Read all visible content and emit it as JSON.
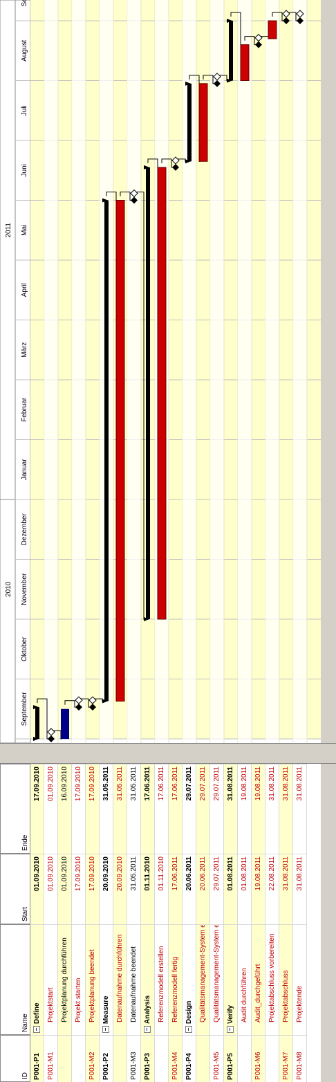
{
  "columns": {
    "id": "ID",
    "name": "Name",
    "start": "Start",
    "end": "Ende"
  },
  "timeline": {
    "years": [
      {
        "label": "2010",
        "month_index": 2.5
      },
      {
        "label": "2011",
        "month_index": 8.5
      }
    ],
    "months": [
      "September",
      "Oktober",
      "November",
      "Dezember",
      "Januar",
      "Februar",
      "März",
      "April",
      "Mai",
      "Juni",
      "Juli",
      "August",
      "Septembe"
    ]
  },
  "colors": {
    "row_yellow": "#ffffcc",
    "row_white": "#ffffff",
    "summary_bar": "#000000",
    "task_bar": "#cc0000",
    "planning_bar": "#00008b",
    "grid": "#c0c0c0"
  },
  "rows": [
    {
      "id": "P001-P1",
      "name": "Define",
      "start": "01.09.2010",
      "end": "17.09.2010",
      "kind": "summary",
      "bar_start": 0,
      "bar_end": 0.53
    },
    {
      "id": "P001-M1",
      "name": "Projektstart",
      "start": "01.09.2010",
      "end": "01.09.2010",
      "kind": "milestone",
      "bar_start": 0,
      "bar_end": 0
    },
    {
      "id": "",
      "name": "Projektplanung durchführen",
      "start": "01.09.2010",
      "end": "16.09.2010",
      "kind": "plan",
      "bar_start": 0,
      "bar_end": 0.5
    },
    {
      "id": "",
      "name": "Projekt starten",
      "start": "17.09.2010",
      "end": "17.09.2010",
      "kind": "milestone",
      "bar_start": 0.53,
      "bar_end": 0.53
    },
    {
      "id": "P001-M2",
      "name": "Projektplanung beendet",
      "start": "17.09.2010",
      "end": "17.09.2010",
      "kind": "milestone",
      "bar_start": 0.53,
      "bar_end": 0.53
    },
    {
      "id": "P001-P2",
      "name": "Measure",
      "start": "20.09.2010",
      "end": "31.05.2011",
      "kind": "summary",
      "bar_start": 0.63,
      "bar_end": 9.0
    },
    {
      "id": "",
      "name": "Datenaufnahme durchführen",
      "start": "20.09.2010",
      "end": "31.05.2011",
      "kind": "task",
      "bar_start": 0.63,
      "bar_end": 9.0
    },
    {
      "id": "P001-M3",
      "name": "Datenaufnahme beendet",
      "start": "31.05.2011",
      "end": "31.05.2011",
      "kind": "milestone",
      "bar_start": 9.0,
      "bar_end": 9.0
    },
    {
      "id": "P001-P3",
      "name": "Analysis",
      "start": "01.11.2010",
      "end": "17.06.2011",
      "kind": "summary",
      "bar_start": 2.0,
      "bar_end": 9.55
    },
    {
      "id": "",
      "name": "Referenzmodell erstellen",
      "start": "01.11.2010",
      "end": "17.06.2011",
      "kind": "task",
      "bar_start": 2.0,
      "bar_end": 9.55
    },
    {
      "id": "P001-M4",
      "name": "Referenzmodell fertig",
      "start": "17.06.2011",
      "end": "17.06.2011",
      "kind": "milestone",
      "bar_start": 9.55,
      "bar_end": 9.55
    },
    {
      "id": "P001-P4",
      "name": "Design",
      "start": "20.06.2011",
      "end": "29.07.2011",
      "kind": "summary",
      "bar_start": 9.65,
      "bar_end": 10.95
    },
    {
      "id": "",
      "name": "Qualitätsmanagement-System einführen",
      "start": "20.06.2011",
      "end": "29.07.2011",
      "kind": "task",
      "bar_start": 9.65,
      "bar_end": 10.95
    },
    {
      "id": "P001-M5",
      "name": "Qualitätsmanagement-System eingeführt",
      "start": "29.07.2011",
      "end": "29.07.2011",
      "kind": "milestone",
      "bar_start": 10.95,
      "bar_end": 10.95
    },
    {
      "id": "P001-P5",
      "name": "Verify",
      "start": "01.08.2011",
      "end": "31.08.2011",
      "kind": "summary",
      "bar_start": 11.0,
      "bar_end": 12.0
    },
    {
      "id": "",
      "name": "Audit durchführen",
      "start": "01.08.2011",
      "end": "19.08.2011",
      "kind": "task",
      "bar_start": 11.0,
      "bar_end": 11.6
    },
    {
      "id": "P001-M6",
      "name": "Audit_durchgeführt",
      "start": "19.08.2011",
      "end": "19.08.2011",
      "kind": "milestone",
      "bar_start": 11.6,
      "bar_end": 11.6
    },
    {
      "id": "",
      "name": "Projektabschluss vorbereiten",
      "start": "22.08.2011",
      "end": "31.08.2011",
      "kind": "task",
      "bar_start": 11.7,
      "bar_end": 12.0
    },
    {
      "id": "P001-M7",
      "name": "Projektabschluss",
      "start": "31.08.2011",
      "end": "31.08.2011",
      "kind": "milestone",
      "bar_start": 12.0,
      "bar_end": 12.0
    },
    {
      "id": "P001-M8",
      "name": "Projektende",
      "start": "31.08.2011",
      "end": "31.08.2011",
      "kind": "milestone",
      "bar_start": 12.0,
      "bar_end": 12.0
    }
  ]
}
